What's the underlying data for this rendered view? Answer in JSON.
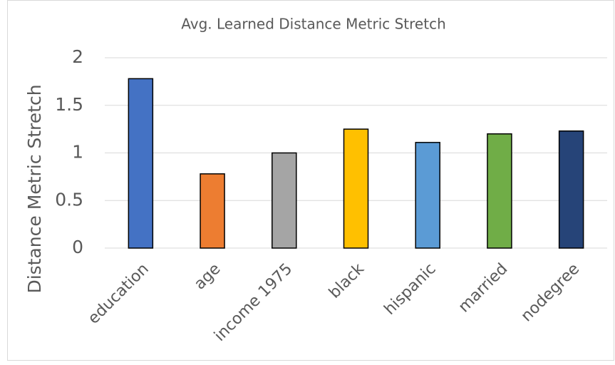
{
  "chart_data": {
    "type": "bar",
    "title": "Avg. Learned Distance Metric Stretch",
    "y_label": "Distance Metric Stretch",
    "categories": [
      "education",
      "age",
      "income 1975",
      "black",
      "hispanic",
      "married",
      "nodegree"
    ],
    "values": [
      1.78,
      0.78,
      1.0,
      1.25,
      1.11,
      1.2,
      1.23
    ],
    "colors": [
      "#4472c4",
      "#ed7d31",
      "#a5a5a5",
      "#ffc000",
      "#5b9bd5",
      "#70ad47",
      "#264478"
    ],
    "ylim": [
      0,
      2
    ],
    "yticks": [
      0,
      0.5,
      1,
      1.5,
      2
    ],
    "grid": true
  }
}
